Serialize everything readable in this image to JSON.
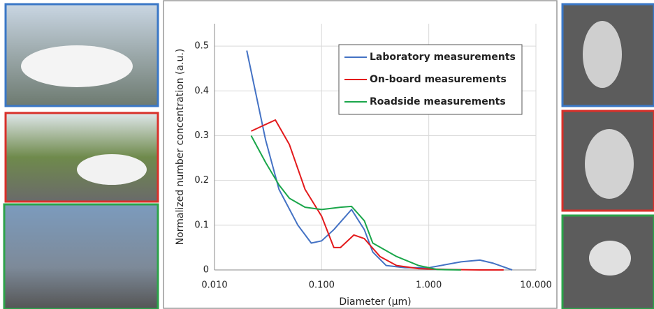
{
  "chart_data": {
    "type": "line",
    "xlabel": "Diameter (µm)",
    "ylabel": "Normalized number concentration (a.u.)",
    "log_x": true,
    "grid": true,
    "legend": "upper right",
    "xlim": [
      0.01,
      10
    ],
    "ylim": [
      0,
      0.55
    ],
    "xticks": [
      {
        "value": 0.01,
        "label": "0.010"
      },
      {
        "value": 0.1,
        "label": "0.100"
      },
      {
        "value": 1,
        "label": "1.000"
      },
      {
        "value": 10,
        "label": "10.000"
      }
    ],
    "yticks": [
      0,
      0.1,
      0.2,
      0.3,
      0.4,
      0.5
    ],
    "series": [
      {
        "name": "Laboratory measurements",
        "color": "#4472c4",
        "x": [
          0.02,
          0.03,
          0.04,
          0.06,
          0.08,
          0.1,
          0.13,
          0.19,
          0.25,
          0.3,
          0.4,
          0.6,
          1,
          2,
          3,
          4,
          6
        ],
        "values": [
          0.49,
          0.29,
          0.18,
          0.1,
          0.06,
          0.065,
          0.09,
          0.135,
          0.09,
          0.04,
          0.01,
          0.005,
          0.005,
          0.018,
          0.022,
          0.015,
          0
        ]
      },
      {
        "name": "On-board measurements",
        "color": "#e31a1c",
        "x": [
          0.022,
          0.03,
          0.037,
          0.05,
          0.07,
          0.1,
          0.13,
          0.15,
          0.2,
          0.25,
          0.35,
          0.5,
          0.8,
          1.5,
          3,
          5
        ],
        "values": [
          0.31,
          0.325,
          0.335,
          0.28,
          0.18,
          0.12,
          0.05,
          0.05,
          0.078,
          0.07,
          0.03,
          0.01,
          0.003,
          0.001,
          0,
          0
        ]
      },
      {
        "name": "Roadside measurements",
        "color": "#1aa64a",
        "x": [
          0.022,
          0.03,
          0.04,
          0.05,
          0.07,
          0.1,
          0.15,
          0.19,
          0.25,
          0.3,
          0.5,
          0.8,
          1.2,
          2
        ],
        "values": [
          0.3,
          0.24,
          0.19,
          0.16,
          0.14,
          0.135,
          0.14,
          0.142,
          0.11,
          0.06,
          0.03,
          0.01,
          0.001,
          0
        ]
      }
    ]
  }
}
